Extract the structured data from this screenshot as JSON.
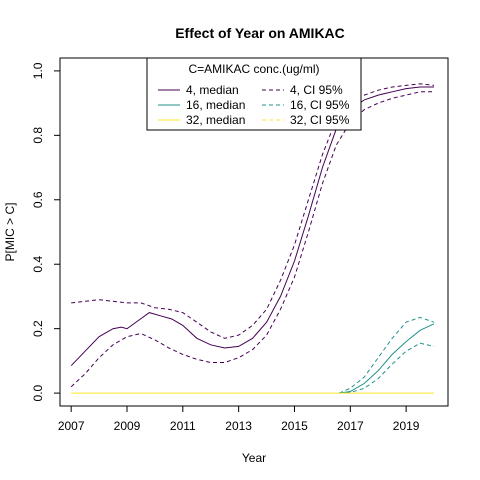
{
  "chart_data": {
    "type": "line",
    "title": "Effect of Year on AMIKAC",
    "xlabel": "Year",
    "ylabel": "P[MIC > C]",
    "xlim": [
      2006.6,
      2020.5
    ],
    "ylim": [
      -0.04,
      1.04
    ],
    "x_ticks": [
      2007,
      2009,
      2011,
      2013,
      2015,
      2017,
      2019
    ],
    "y_ticks": [
      0.0,
      0.2,
      0.4,
      0.6,
      0.8,
      1.0
    ],
    "y_tick_labels": [
      "0.0",
      "0.2",
      "0.4",
      "0.6",
      "0.8",
      "1.0"
    ],
    "legend": {
      "title": "C=AMIKAC conc.(ug/ml)",
      "placement": "top-center",
      "entries": [
        {
          "label": "4, median",
          "color": "#440154",
          "dashed": false
        },
        {
          "label": "4, CI 95%",
          "color": "#440154",
          "dashed": true
        },
        {
          "label": "16, median",
          "color": "#21908C",
          "dashed": false
        },
        {
          "label": "16, CI 95%",
          "color": "#21908C",
          "dashed": true
        },
        {
          "label": "32, median",
          "color": "#FDE725",
          "dashed": false
        },
        {
          "label": "32, CI 95%",
          "color": "#FDE725",
          "dashed": true
        }
      ]
    },
    "series": [
      {
        "name": "4, median",
        "color": "#440154",
        "dashed": false,
        "x": [
          2007,
          2007.5,
          2008,
          2008.5,
          2008.8,
          2009,
          2009.4,
          2009.8,
          2010.2,
          2010.6,
          2011,
          2011.5,
          2012,
          2012.5,
          2013,
          2013.5,
          2014,
          2014.5,
          2015,
          2015.5,
          2016,
          2016.5,
          2017,
          2017.5,
          2018,
          2018.5,
          2019,
          2019.5,
          2020
        ],
        "y": [
          0.085,
          0.13,
          0.175,
          0.2,
          0.205,
          0.2,
          0.225,
          0.25,
          0.24,
          0.23,
          0.21,
          0.17,
          0.15,
          0.14,
          0.145,
          0.17,
          0.22,
          0.3,
          0.41,
          0.55,
          0.7,
          0.82,
          0.88,
          0.91,
          0.925,
          0.935,
          0.945,
          0.95,
          0.95
        ]
      },
      {
        "name": "4, CI 95%",
        "color": "#440154",
        "dashed": true,
        "x": [
          2007,
          2007.5,
          2008,
          2008.5,
          2009,
          2009.5,
          2010,
          2010.5,
          2011,
          2011.5,
          2012,
          2012.5,
          2013,
          2013.5,
          2014,
          2014.5,
          2015,
          2015.5,
          2016,
          2016.5,
          2017,
          2017.5,
          2018,
          2018.5,
          2019,
          2019.5,
          2020
        ],
        "y": [
          0.28,
          0.285,
          0.29,
          0.285,
          0.28,
          0.28,
          0.265,
          0.26,
          0.25,
          0.22,
          0.19,
          0.17,
          0.18,
          0.21,
          0.26,
          0.35,
          0.46,
          0.6,
          0.74,
          0.85,
          0.9,
          0.925,
          0.94,
          0.95,
          0.955,
          0.96,
          0.955
        ]
      },
      {
        "name": "4, CI 95%",
        "color": "#440154",
        "dashed": true,
        "x": [
          2007,
          2007.5,
          2008,
          2008.5,
          2009,
          2009.5,
          2010,
          2010.5,
          2011,
          2011.5,
          2012,
          2012.5,
          2013,
          2013.5,
          2014,
          2014.5,
          2015,
          2015.5,
          2016,
          2016.5,
          2017,
          2017.5,
          2018,
          2018.5,
          2019,
          2019.5,
          2020
        ],
        "y": [
          0.02,
          0.06,
          0.11,
          0.15,
          0.175,
          0.185,
          0.165,
          0.14,
          0.12,
          0.105,
          0.095,
          0.095,
          0.11,
          0.135,
          0.18,
          0.26,
          0.36,
          0.5,
          0.65,
          0.77,
          0.84,
          0.88,
          0.9,
          0.915,
          0.925,
          0.935,
          0.935
        ]
      },
      {
        "name": "16, median",
        "color": "#21908C",
        "dashed": false,
        "x": [
          2016.6,
          2017,
          2017.5,
          2018,
          2018.5,
          2019,
          2019.5,
          2020
        ],
        "y": [
          0.0,
          0.005,
          0.03,
          0.07,
          0.12,
          0.16,
          0.195,
          0.215
        ]
      },
      {
        "name": "16, CI 95%",
        "color": "#21908C",
        "dashed": true,
        "x": [
          2016.6,
          2017,
          2017.5,
          2018,
          2018.5,
          2019,
          2019.5,
          2020
        ],
        "y": [
          0.0,
          0.015,
          0.05,
          0.11,
          0.17,
          0.22,
          0.235,
          0.22
        ]
      },
      {
        "name": "16, CI 95%",
        "color": "#21908C",
        "dashed": true,
        "x": [
          2016.6,
          2017,
          2017.5,
          2018,
          2018.5,
          2019,
          2019.5,
          2020
        ],
        "y": [
          0.0,
          0.002,
          0.015,
          0.045,
          0.09,
          0.13,
          0.155,
          0.145
        ]
      },
      {
        "name": "32, median",
        "color": "#FDE725",
        "dashed": false,
        "x": [
          2007,
          2020
        ],
        "y": [
          0.0,
          0.0
        ]
      }
    ]
  }
}
